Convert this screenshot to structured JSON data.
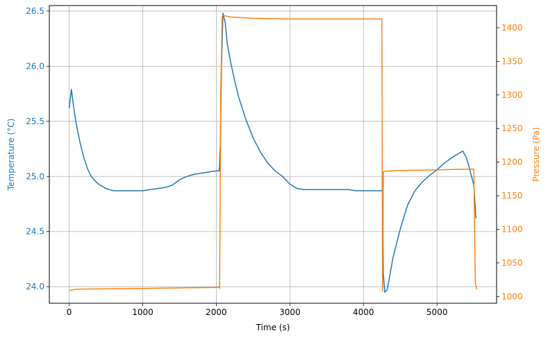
{
  "chart_data": {
    "type": "line",
    "xlabel": "Time (s)",
    "ylabel_left": "Temperature (°C)",
    "ylabel_right": "Pressure (Pa)",
    "xlim": [
      -270,
      5810
    ],
    "ylim_left": [
      23.85,
      26.55
    ],
    "ylim_right": [
      990,
      1433
    ],
    "x_ticks": [
      0,
      1000,
      2000,
      3000,
      4000,
      5000
    ],
    "y_ticks_left": [
      24.0,
      24.5,
      25.0,
      25.5,
      26.0,
      26.5
    ],
    "y_ticks_right": [
      1000,
      1050,
      1100,
      1150,
      1200,
      1250,
      1300,
      1350,
      1400
    ],
    "grid": true,
    "colors": {
      "temperature": "#1f77b4",
      "pressure": "#ff7f0e"
    },
    "series": [
      {
        "axis": "left",
        "color": "#1f77b4",
        "x": [
          0,
          30,
          60,
          100,
          150,
          200,
          250,
          300,
          350,
          400,
          450,
          500,
          550,
          600,
          700,
          800,
          900,
          1000,
          1100,
          1200,
          1300,
          1400,
          1500,
          1600,
          1700,
          1800,
          1900,
          2000,
          2040,
          2055,
          2070,
          2090,
          2120,
          2150,
          2200,
          2250,
          2300,
          2400,
          2500,
          2600,
          2700,
          2800,
          2900,
          3000,
          3100,
          3200,
          3300,
          3400,
          3500,
          3600,
          3700,
          3800,
          3900,
          4000,
          4100,
          4200,
          4260,
          4270,
          4290,
          4320,
          4350,
          4400,
          4500,
          4600,
          4700,
          4800,
          4900,
          5000,
          5100,
          5200,
          5300,
          5350,
          5400,
          5450,
          5500,
          5530
        ],
        "y": [
          25.62,
          25.79,
          25.63,
          25.46,
          25.3,
          25.17,
          25.07,
          25.0,
          24.96,
          24.93,
          24.91,
          24.89,
          24.88,
          24.87,
          24.87,
          24.87,
          24.87,
          24.87,
          24.88,
          24.89,
          24.9,
          24.92,
          24.97,
          25.0,
          25.02,
          25.03,
          25.04,
          25.05,
          25.05,
          25.3,
          26.0,
          26.48,
          26.4,
          26.2,
          26.02,
          25.87,
          25.73,
          25.52,
          25.35,
          25.22,
          25.12,
          25.05,
          25.0,
          24.93,
          24.89,
          24.88,
          24.88,
          24.88,
          24.88,
          24.88,
          24.88,
          24.88,
          24.87,
          24.87,
          24.87,
          24.87,
          24.87,
          24.12,
          23.95,
          23.97,
          24.07,
          24.26,
          24.52,
          24.74,
          24.87,
          24.95,
          25.01,
          25.06,
          25.12,
          25.17,
          25.21,
          25.23,
          25.17,
          25.05,
          24.92,
          24.62
        ]
      },
      {
        "axis": "right",
        "color": "#ff7f0e",
        "x": [
          0,
          100,
          500,
          1000,
          1500,
          2000,
          2040,
          2045,
          2060,
          2080,
          2100,
          2200,
          2500,
          3000,
          3500,
          4000,
          4250,
          4255,
          4260,
          4270,
          4280,
          4300,
          4500,
          5000,
          5300,
          5450,
          5480,
          5500,
          5520,
          5540
        ],
        "y": [
          1009,
          1011,
          1011.5,
          1012,
          1012.8,
          1013.5,
          1014,
          1012,
          1300,
          1417,
          1418,
          1416,
          1414,
          1413,
          1413,
          1413,
          1413,
          1200,
          1008,
          1185,
          1186,
          1186.5,
          1187.5,
          1188.5,
          1189.3,
          1189.5,
          1189.5,
          1189.6,
          1020,
          1011
        ]
      }
    ]
  }
}
